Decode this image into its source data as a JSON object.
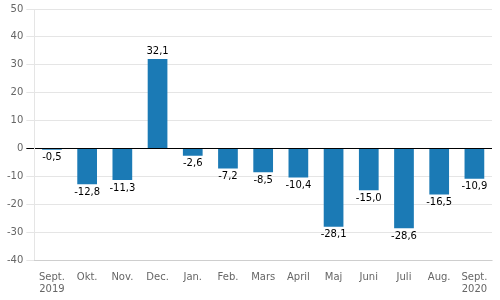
{
  "chart_data": {
    "type": "bar",
    "categories": [
      "Sept.\n2019",
      "Okt.",
      "Nov.",
      "Dec.",
      "Jan.",
      "Feb.",
      "Mars",
      "April",
      "Maj",
      "Juni",
      "Juli",
      "Aug.",
      "Sept.\n2020"
    ],
    "values": [
      -0.5,
      -12.8,
      -11.3,
      32.1,
      -2.6,
      -7.2,
      -8.5,
      -10.4,
      -28.1,
      -15.0,
      -28.6,
      -16.5,
      -10.9
    ],
    "value_labels": [
      "-0,5",
      "-12,8",
      "-11,3",
      "32,1",
      "-2,6",
      "-7,2",
      "-8,5",
      "-10,4",
      "-28,1",
      "-15,0",
      "-28,6",
      "-16,5",
      "-10,9"
    ],
    "data_labels": true,
    "color": "#1b7ab5",
    "ylim": [
      -40,
      50
    ],
    "yticks": [
      -40,
      -30,
      -20,
      -10,
      0,
      10,
      20,
      30,
      40,
      50
    ],
    "grid": true
  }
}
